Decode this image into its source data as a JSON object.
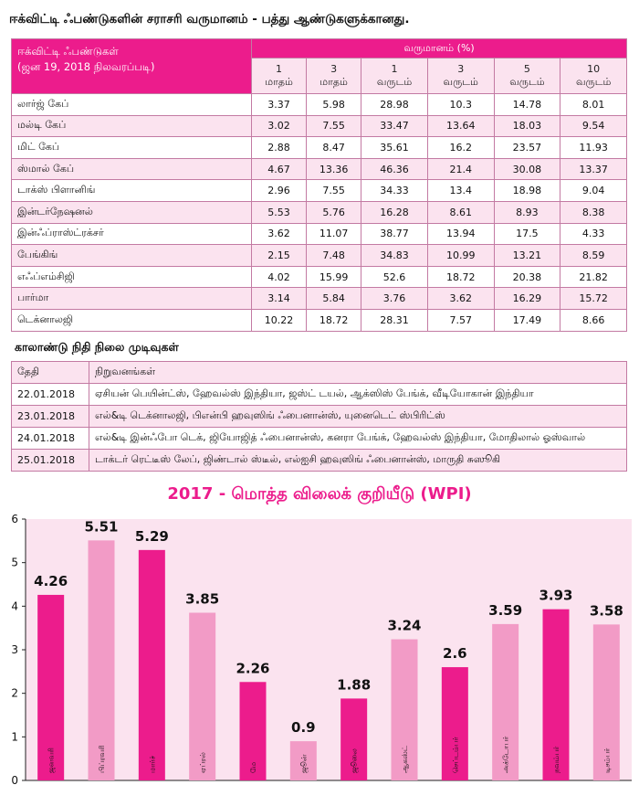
{
  "page_title": "ஈக்விட்டி ஃபண்டுகளின் சராசரி வருமானம் - பத்து ஆண்டுகளுக்கானது.",
  "fund_table": {
    "header_label_line1": "ஈக்விட்டி ஃபண்டுகள்",
    "header_label_line2": "(ஜன 19, 2018  நிலவரப்படி)",
    "returns_group_label": "வருமானம் (%)",
    "periods": [
      {
        "num": "1",
        "unit": "மாதம்"
      },
      {
        "num": "3",
        "unit": "மாதம்"
      },
      {
        "num": "1",
        "unit": "வருடம்"
      },
      {
        "num": "3",
        "unit": "வருடம்"
      },
      {
        "num": "5",
        "unit": "வருடம்"
      },
      {
        "num": "10",
        "unit": "வருடம்"
      }
    ],
    "rows": [
      {
        "name": "லார்ஜ் கேப்",
        "values": [
          "3.37",
          "5.98",
          "28.98",
          "10.3",
          "14.78",
          "8.01"
        ]
      },
      {
        "name": "மல்டி கேப்",
        "values": [
          "3.02",
          "7.55",
          "33.47",
          "13.64",
          "18.03",
          "9.54"
        ]
      },
      {
        "name": "மிட் கேப்",
        "values": [
          "2.88",
          "8.47",
          "35.61",
          "16.2",
          "23.57",
          "11.93"
        ]
      },
      {
        "name": "ஸ்மால் கேப்",
        "values": [
          "4.67",
          "13.36",
          "46.36",
          "21.4",
          "30.08",
          "13.37"
        ]
      },
      {
        "name": "டாக்ஸ் பிளானிங்",
        "values": [
          "2.96",
          "7.55",
          "34.33",
          "13.4",
          "18.98",
          "9.04"
        ]
      },
      {
        "name": "இன்டர்நேஷனல்",
        "values": [
          "5.53",
          "5.76",
          "16.28",
          "8.61",
          "8.93",
          "8.38"
        ]
      },
      {
        "name": "இன்ஃப்ராஸ்ட்ரக்சர்",
        "values": [
          "3.62",
          "11.07",
          "38.77",
          "13.94",
          "17.5",
          "4.33"
        ]
      },
      {
        "name": "பேங்கிங்",
        "values": [
          "2.15",
          "7.48",
          "34.83",
          "10.99",
          "13.21",
          "8.59"
        ]
      },
      {
        "name": "எஃப்எம்சிஜி",
        "values": [
          "4.02",
          "15.99",
          "52.6",
          "18.72",
          "20.38",
          "21.82"
        ]
      },
      {
        "name": "பார்மா",
        "values": [
          "3.14",
          "5.84",
          "3.76",
          "3.62",
          "16.29",
          "15.72"
        ]
      },
      {
        "name": "டெக்னாலஜி",
        "values": [
          "10.22",
          "18.72",
          "28.31",
          "7.57",
          "17.49",
          "8.66"
        ]
      }
    ]
  },
  "results_section": {
    "title": "காலாண்டு நிதி நிலை முடிவுகள்",
    "date_header": "தேதி",
    "companies_header": "நிறுவனங்கள்",
    "rows": [
      {
        "date": "22.01.2018",
        "companies": "ஏசியன் பெயின்ட்ஸ், ஹேவல்ஸ் இந்தியா, ஜஸ்ட் டயல், ஆக்ஸிஸ் பேங்க், வீடியோகான் இந்தியா"
      },
      {
        "date": "23.01.2018",
        "companies": "எல்&டி டெக்னாலஜி, பிஎன்பி ஹவுஸிங் ஃபைனான்ஸ், யுனைடெட் ஸ்பிரிட்ஸ்"
      },
      {
        "date": "24.01.2018",
        "companies": "எல்&டி இன்ஃபோ டெக், ஜியோஜித் ஃபைனான்ஸ், கனரா பேங்க், ஹேவல்ஸ் இந்தியா, மோதிலால் ஓஸ்வால்"
      },
      {
        "date": "25.01.2018",
        "companies": "டாக்டர் ரெட்டீஸ் லேப், ஜிண்டால் ஸ்டீல், எல்ஐசி ஹவுஸிங் ஃபைனான்ஸ், மாருதி சுஸூகி"
      }
    ]
  },
  "colors": {
    "accent": "#ec1c8c",
    "light_pink": "#f29bc6",
    "row_tint": "#fbe3ef",
    "chart_bg": "#fbe3ef"
  },
  "chart_data": {
    "type": "bar",
    "title": "2017 - மொத்த விலைக் குறியீடு (WPI)",
    "categories": [
      "ஜனவரி",
      "பிப்ரவரி",
      "மார்ச்",
      "ஏப்ரல்",
      "மே",
      "ஜூன்",
      "ஜூலை",
      "ஆகஸ்ட்",
      "செப்டம்பர்",
      "அக்டோபர்",
      "நவம்பர்",
      "டிசம்பர்"
    ],
    "values": [
      4.26,
      5.51,
      5.29,
      3.85,
      2.26,
      0.9,
      1.88,
      3.24,
      2.6,
      3.59,
      3.93,
      3.58
    ],
    "value_labels": [
      "4.26",
      "5.51",
      "5.29",
      "3.85",
      "2.26",
      "0.9",
      "1.88",
      "3.24",
      "2.6",
      "3.59",
      "3.93",
      "3.58"
    ],
    "ylim": [
      0,
      6
    ],
    "yticks": [
      "0",
      "1",
      "2",
      "3",
      "4",
      "5",
      "6"
    ],
    "bar_colors": [
      "#ec1c8c",
      "#f29bc6"
    ],
    "grid": false
  }
}
